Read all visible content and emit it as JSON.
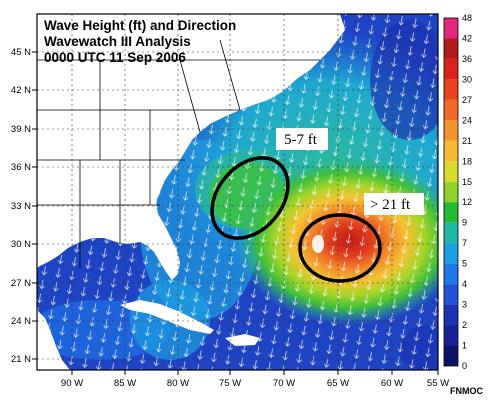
{
  "title": {
    "line1": "Wave Height (ft) and Direction",
    "line2": "Wavewatch III Analysis",
    "line3": "0000 UTC 11 Sep 2006"
  },
  "lon_labels": [
    "90 W",
    "85 W",
    "80 W",
    "75 W",
    "70 W",
    "65 W",
    "60 W",
    "55 W"
  ],
  "lat_labels": [
    "45 N",
    "42 N",
    "39 N",
    "36 N",
    "33 N",
    "30 N",
    "27 N",
    "24 N",
    "21 N"
  ],
  "colorbar": {
    "labels": [
      "48",
      "42",
      "36",
      "30",
      "27",
      "24",
      "21",
      "18",
      "15",
      "12",
      "9",
      "7",
      "5",
      "4",
      "3",
      "2",
      "1",
      "0"
    ],
    "colors": [
      "#e0287e",
      "#b01b1b",
      "#d8241c",
      "#e8421e",
      "#f0682a",
      "#f3952e",
      "#f6b735",
      "#d8da2e",
      "#8fd02a",
      "#25b834",
      "#21b5a6",
      "#1e9ee0",
      "#1e78e8",
      "#2154d6",
      "#1d33b0",
      "#172394",
      "#0a1466"
    ]
  },
  "annotations": [
    {
      "text": "5-7 ft"
    },
    {
      "text": "> 21 ft"
    }
  ],
  "credit": "FNMOC"
}
